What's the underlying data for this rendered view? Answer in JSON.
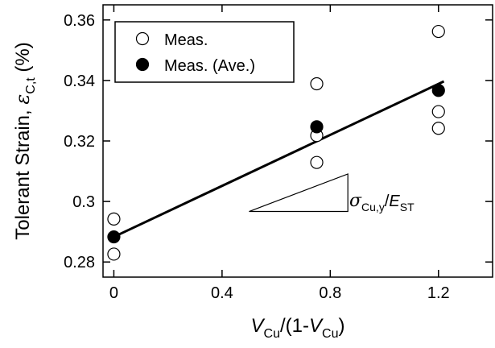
{
  "chart_data": {
    "type": "scatter",
    "xlabel": {
      "main": "V",
      "sub": "Cu",
      "mid": "/(1-",
      "main2": "V",
      "sub2": "Cu",
      "end": ")"
    },
    "ylabel": {
      "main": "Tolerant Strain, ",
      "symbol": "ε",
      "sub": "C,t",
      "unit": " (%)"
    },
    "xlim": [
      -0.04,
      1.4
    ],
    "ylim": [
      0.275,
      0.365
    ],
    "xticks": [
      0,
      0.4,
      0.8,
      1.2
    ],
    "xtick_labels": [
      "0",
      "0.4",
      "0.8",
      "1.2"
    ],
    "yticks": [
      0.28,
      0.3,
      0.32,
      0.34,
      0.36
    ],
    "ytick_labels": [
      "0.28",
      "0.3",
      "0.32",
      "0.34",
      "0.36"
    ],
    "series": [
      {
        "name": "Meas.",
        "marker": "open-circle",
        "points": [
          {
            "x": 0,
            "y": 0.2942
          },
          {
            "x": 0,
            "y": 0.2826
          },
          {
            "x": 0.75,
            "y": 0.3389
          },
          {
            "x": 0.75,
            "y": 0.3218
          },
          {
            "x": 0.75,
            "y": 0.3129
          },
          {
            "x": 1.2,
            "y": 0.3562
          },
          {
            "x": 1.2,
            "y": 0.3297
          },
          {
            "x": 1.2,
            "y": 0.3242
          }
        ]
      },
      {
        "name": "Meas. (Ave.)",
        "marker": "filled-circle",
        "points": [
          {
            "x": 0,
            "y": 0.2883
          },
          {
            "x": 0.75,
            "y": 0.3247
          },
          {
            "x": 1.2,
            "y": 0.3367
          }
        ]
      }
    ],
    "fit_line": {
      "x": [
        0,
        1.22
      ],
      "y": [
        0.2883,
        0.3397
      ]
    },
    "slope_triangle": {
      "x_start": 0.5,
      "x_end": 0.865,
      "y_base": 0.2967,
      "y_top": 0.3091,
      "label": {
        "symbol": "σ",
        "sub": "Cu,y",
        "mid": "/",
        "main": "E",
        "sub2": "ST"
      }
    },
    "legend_position": "top-left",
    "grid": false
  }
}
